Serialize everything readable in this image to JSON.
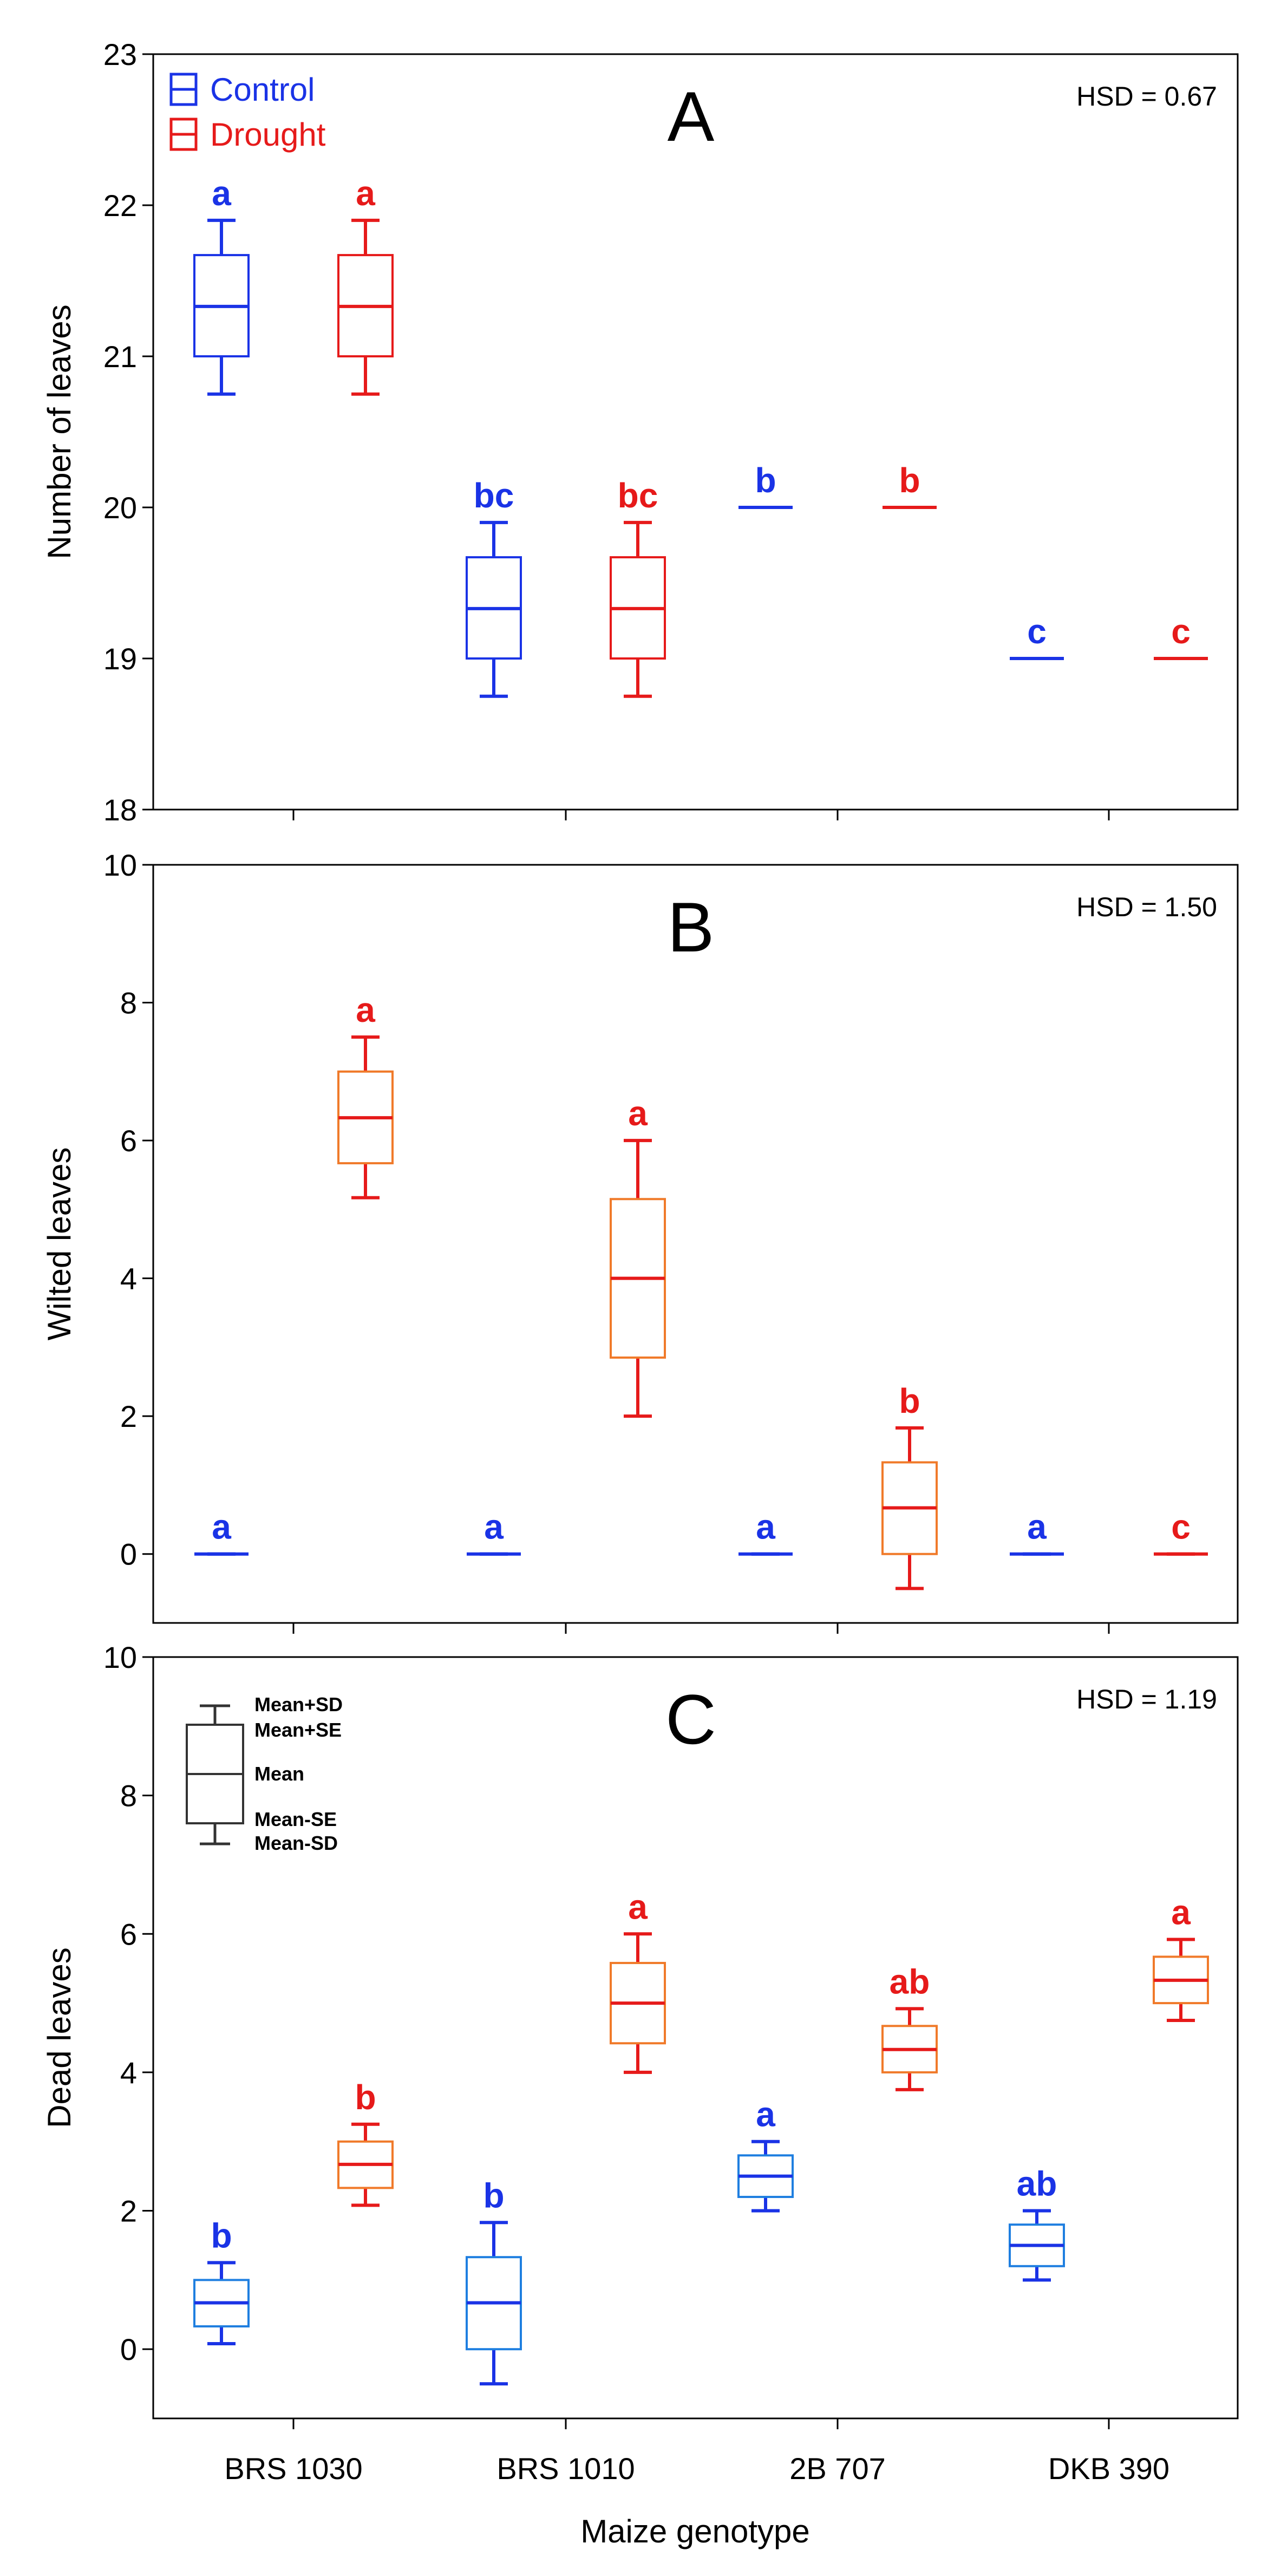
{
  "chart_data": {
    "type": "box",
    "xlabel": "Maize genotype",
    "categories": [
      "BRS 1030",
      "BRS 1010",
      "2B 707",
      "DKB 390"
    ],
    "legend": [
      {
        "name": "Control",
        "color": "#1a33e6"
      },
      {
        "name": "Drought",
        "color": "#e61a1a"
      }
    ],
    "colors": {
      "control": "#1a33e6",
      "control_box": "#1f7fe0",
      "drought": "#e61a1a",
      "drought_box": "#f07a2a",
      "key": "#333333"
    },
    "box_key": {
      "labels": [
        "Mean+SD",
        "Mean+SE",
        "Mean",
        "Mean-SE",
        "Mean-SD"
      ]
    },
    "panels": [
      {
        "id": "A",
        "ylabel": "Number of leaves",
        "hsd": "HSD = 0.67",
        "ylim": [
          18,
          23
        ],
        "yticks": [
          18,
          19,
          20,
          21,
          22,
          23
        ],
        "box_style": "plain",
        "show_legend": true,
        "show_key": false,
        "series": [
          {
            "name": "Control",
            "boxes": [
              {
                "mean": 21.33,
                "se_low": 21.0,
                "se_high": 21.67,
                "sd_low": 20.75,
                "sd_high": 21.9,
                "letter": "a"
              },
              {
                "mean": 19.33,
                "se_low": 19.0,
                "se_high": 19.67,
                "sd_low": 18.75,
                "sd_high": 19.9,
                "letter": "bc"
              },
              {
                "mean": 20.0,
                "se_low": 20.0,
                "se_high": 20.0,
                "sd_low": 20.0,
                "sd_high": 20.0,
                "letter": "b"
              },
              {
                "mean": 19.0,
                "se_low": 19.0,
                "se_high": 19.0,
                "sd_low": 19.0,
                "sd_high": 19.0,
                "letter": "c"
              }
            ]
          },
          {
            "name": "Drought",
            "boxes": [
              {
                "mean": 21.33,
                "se_low": 21.0,
                "se_high": 21.67,
                "sd_low": 20.75,
                "sd_high": 21.9,
                "letter": "a"
              },
              {
                "mean": 19.33,
                "se_low": 19.0,
                "se_high": 19.67,
                "sd_low": 18.75,
                "sd_high": 19.9,
                "letter": "bc"
              },
              {
                "mean": 20.0,
                "se_low": 20.0,
                "se_high": 20.0,
                "sd_low": 20.0,
                "sd_high": 20.0,
                "letter": "b"
              },
              {
                "mean": 19.0,
                "se_low": 19.0,
                "se_high": 19.0,
                "sd_low": 19.0,
                "sd_high": 19.0,
                "letter": "c"
              }
            ]
          }
        ]
      },
      {
        "id": "B",
        "ylabel": "Wilted leaves",
        "hsd": "HSD = 1.50",
        "ylim": [
          -1,
          10
        ],
        "yticks": [
          0,
          2,
          4,
          6,
          8,
          10
        ],
        "box_style": "shaded",
        "show_legend": false,
        "show_key": false,
        "series": [
          {
            "name": "Control",
            "boxes": [
              {
                "mean": 0,
                "se_low": 0,
                "se_high": 0,
                "sd_low": 0,
                "sd_high": 0,
                "letter": "a"
              },
              {
                "mean": 0,
                "se_low": 0,
                "se_high": 0,
                "sd_low": 0,
                "sd_high": 0,
                "letter": "a"
              },
              {
                "mean": 0,
                "se_low": 0,
                "se_high": 0,
                "sd_low": 0,
                "sd_high": 0,
                "letter": "a"
              },
              {
                "mean": 0,
                "se_low": 0,
                "se_high": 0,
                "sd_low": 0,
                "sd_high": 0,
                "letter": "a"
              }
            ]
          },
          {
            "name": "Drought",
            "boxes": [
              {
                "mean": 6.33,
                "se_low": 5.67,
                "se_high": 7.0,
                "sd_low": 5.17,
                "sd_high": 7.5,
                "letter": "a"
              },
              {
                "mean": 4.0,
                "se_low": 2.85,
                "se_high": 5.15,
                "sd_low": 2.0,
                "sd_high": 6.0,
                "letter": "a"
              },
              {
                "mean": 0.67,
                "se_low": 0.0,
                "se_high": 1.33,
                "sd_low": -0.5,
                "sd_high": 1.83,
                "letter": "b"
              },
              {
                "mean": 0,
                "se_low": 0,
                "se_high": 0,
                "sd_low": 0,
                "sd_high": 0,
                "letter": "c"
              }
            ]
          }
        ]
      },
      {
        "id": "C",
        "ylabel": "Dead leaves",
        "hsd": "HSD = 1.19",
        "ylim": [
          -1,
          10
        ],
        "yticks": [
          0,
          2,
          4,
          6,
          8,
          10
        ],
        "box_style": "shaded",
        "show_legend": false,
        "show_key": true,
        "series": [
          {
            "name": "Control",
            "boxes": [
              {
                "mean": 0.67,
                "se_low": 0.33,
                "se_high": 1.0,
                "sd_low": 0.08,
                "sd_high": 1.25,
                "letter": "b"
              },
              {
                "mean": 0.67,
                "se_low": 0.0,
                "se_high": 1.33,
                "sd_low": -0.5,
                "sd_high": 1.83,
                "letter": "b"
              },
              {
                "mean": 2.5,
                "se_low": 2.2,
                "se_high": 2.8,
                "sd_low": 2.0,
                "sd_high": 3.0,
                "letter": "a"
              },
              {
                "mean": 1.5,
                "se_low": 1.2,
                "se_high": 1.8,
                "sd_low": 1.0,
                "sd_high": 2.0,
                "letter": "ab"
              }
            ]
          },
          {
            "name": "Drought",
            "boxes": [
              {
                "mean": 2.67,
                "se_low": 2.33,
                "se_high": 3.0,
                "sd_low": 2.08,
                "sd_high": 3.25,
                "letter": "b"
              },
              {
                "mean": 5.0,
                "se_low": 4.42,
                "se_high": 5.58,
                "sd_low": 4.0,
                "sd_high": 6.0,
                "letter": "a"
              },
              {
                "mean": 4.33,
                "se_low": 4.0,
                "se_high": 4.67,
                "sd_low": 3.75,
                "sd_high": 4.92,
                "letter": "ab"
              },
              {
                "mean": 5.33,
                "se_low": 5.0,
                "se_high": 5.67,
                "sd_low": 4.75,
                "sd_high": 5.92,
                "letter": "a"
              }
            ]
          }
        ]
      }
    ]
  }
}
